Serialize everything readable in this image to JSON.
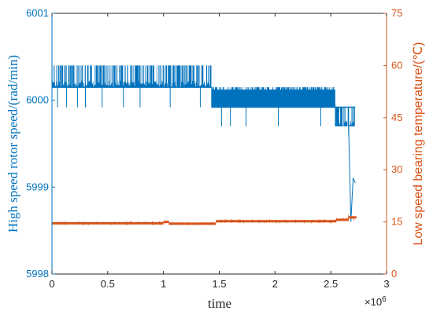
{
  "chart_data": {
    "type": "line",
    "xlabel": "time",
    "x_exponent_label": "×10",
    "x_exponent_power": "6",
    "xlim": [
      0,
      3000000
    ],
    "x_ticks": [
      0,
      500000,
      1000000,
      1500000,
      2000000,
      2500000,
      3000000
    ],
    "x_tick_labels": [
      "0",
      "0.5",
      "1",
      "1.5",
      "2",
      "2.5",
      "3"
    ],
    "left_axis": {
      "label": "High speed rotor speed/(rad/min)",
      "ylim": [
        5998,
        6001
      ],
      "ticks": [
        5998,
        5999,
        6000,
        6001
      ],
      "tick_labels": [
        "5998",
        "5999",
        "6000",
        "6001"
      ],
      "color": "#0072BD"
    },
    "right_axis": {
      "label": "Low speed bearing temperature/(℃)",
      "ylim": [
        0,
        75
      ],
      "ticks": [
        0,
        15,
        30,
        45,
        60,
        75
      ],
      "tick_labels": [
        "0",
        "15",
        "30",
        "45",
        "60",
        "75"
      ],
      "color": "#D95319"
    },
    "series": [
      {
        "axis": "left",
        "color": "#0072BD",
        "base_levels": [
          {
            "x_start": 0,
            "x_end": 1430000,
            "value": 6000.15
          },
          {
            "x_start": 1430000,
            "x_end": 2540000,
            "value": 5999.92
          },
          {
            "x_start": 2540000,
            "x_end": 2720000,
            "value": 5999.92
          }
        ],
        "bands": [
          {
            "x_start": 0,
            "x_end": 1430000,
            "low": 6000.15,
            "high": 6000.4
          },
          {
            "x_start": 1430000,
            "x_end": 2540000,
            "low": 5999.92,
            "high": 6000.15
          },
          {
            "x_start": 2540000,
            "x_end": 2720000,
            "low": 5999.7,
            "high": 5999.92
          }
        ],
        "spikes_down": [
          {
            "x": 50000,
            "value": 5999.92
          },
          {
            "x": 130000,
            "value": 5999.92
          },
          {
            "x": 230000,
            "value": 5999.92
          },
          {
            "x": 300000,
            "value": 5999.92
          },
          {
            "x": 450000,
            "value": 5999.92
          },
          {
            "x": 640000,
            "value": 5999.92
          },
          {
            "x": 790000,
            "value": 5999.92
          },
          {
            "x": 1060000,
            "value": 5999.92
          },
          {
            "x": 1330000,
            "value": 5999.92
          },
          {
            "x": 1520000,
            "value": 5999.7
          },
          {
            "x": 1600000,
            "value": 5999.7
          },
          {
            "x": 1740000,
            "value": 5999.7
          },
          {
            "x": 2030000,
            "value": 5999.7
          },
          {
            "x": 2410000,
            "value": 5999.7
          },
          {
            "x": 2660000,
            "value": 5999.6
          }
        ],
        "end_drop": [
          {
            "x": 2660000,
            "value": 5999.7
          },
          {
            "x": 2680000,
            "value": 5998.6
          },
          {
            "x": 2700000,
            "value": 5999.1
          },
          {
            "x": 2720000,
            "value": 5999.05
          }
        ]
      },
      {
        "axis": "right",
        "color": "#D95319",
        "segments": [
          {
            "x_start": 0,
            "x_end": 1000000,
            "value": 14.6,
            "noise_low": 14.0,
            "noise_high": 15.2
          },
          {
            "x_start": 1000000,
            "x_end": 1050000,
            "value": 15.0,
            "noise_low": 14.3,
            "noise_high": 15.4
          },
          {
            "x_start": 1050000,
            "x_end": 1470000,
            "value": 14.5,
            "noise_low": 14.0,
            "noise_high": 15.0
          },
          {
            "x_start": 1470000,
            "x_end": 2550000,
            "value": 15.2,
            "noise_low": 14.6,
            "noise_high": 15.8
          },
          {
            "x_start": 2550000,
            "x_end": 2660000,
            "value": 15.6,
            "noise_low": 15.2,
            "noise_high": 16.3
          },
          {
            "x_start": 2660000,
            "x_end": 2730000,
            "value": 16.3,
            "noise_low": 15.4,
            "noise_high": 17.2
          }
        ]
      }
    ]
  }
}
